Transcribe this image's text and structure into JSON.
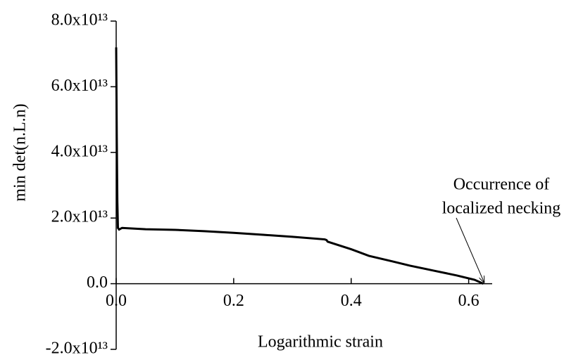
{
  "chart_data": {
    "type": "line",
    "xlabel": "Logarithmic strain",
    "ylabel": "min det(n.L.n)",
    "annotation": [
      "Occurrence of",
      "localized necking"
    ],
    "x": [
      0,
      0.001,
      0.002,
      0.003,
      0.005,
      0.01,
      0.05,
      0.1,
      0.15,
      0.2,
      0.25,
      0.3,
      0.355,
      0.358,
      0.36,
      0.4,
      0.43,
      0.47,
      0.5,
      0.54,
      0.58,
      0.61,
      0.625
    ],
    "series": [
      {
        "color": "#000000",
        "values": [
          72000000000000.0,
          45000000000000.0,
          25000000000000.0,
          17000000000000.0,
          16500000000000.0,
          17000000000000.0,
          16600000000000.0,
          16400000000000.0,
          16000000000000.0,
          15500000000000.0,
          14900000000000.0,
          14300000000000.0,
          13500000000000.0,
          13300000000000.0,
          12800000000000.0,
          10500000000000.0,
          8500000000000.0,
          6800000000000.0,
          5500000000000.0,
          4000000000000.0,
          2500000000000.0,
          1200000000000.0,
          0.0
        ]
      }
    ],
    "xlim": [
      0,
      0.64
    ],
    "ylim": [
      -20000000000000.0,
      80000000000000.0
    ],
    "xticks": [
      {
        "value": 0,
        "label": "0.0"
      },
      0.2,
      0.4,
      0.6
    ],
    "yticks": [
      {
        "value": -20000000000000.0,
        "label": "-2.0x10¹³"
      },
      {
        "value": 0,
        "label": "0.0"
      },
      {
        "value": 20000000000000.0,
        "label": "2.0x10¹³"
      },
      {
        "value": 40000000000000.0,
        "label": "4.0x10¹³"
      },
      {
        "value": 60000000000000.0,
        "label": "6.0x10¹³"
      },
      {
        "value": 80000000000000.0,
        "label": "8.0x10¹³"
      }
    ]
  }
}
